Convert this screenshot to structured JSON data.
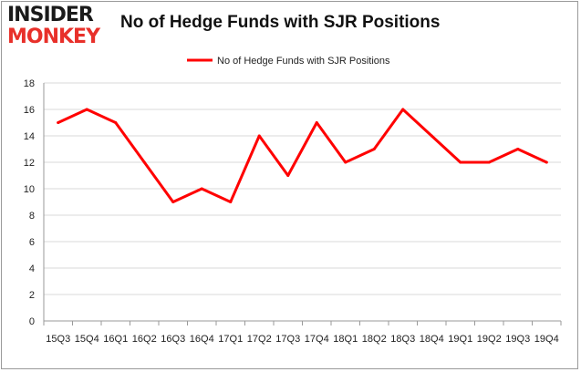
{
  "logo": {
    "line1": "INSIDER",
    "line2": "MONKEY"
  },
  "colors": {
    "series": "#ff0000",
    "grid": "#d8d8d8",
    "axis": "#9a9a9a",
    "brand": "#e8302a"
  },
  "chart_data": {
    "type": "line",
    "title": "No of Hedge Funds with SJR Positions",
    "legend_position": "top-center",
    "grid": true,
    "ylim": [
      0,
      18
    ],
    "yticks": [
      0,
      2,
      4,
      6,
      8,
      10,
      12,
      14,
      16,
      18
    ],
    "categories": [
      "15Q3",
      "15Q4",
      "16Q1",
      "16Q2",
      "16Q3",
      "16Q4",
      "17Q1",
      "17Q2",
      "17Q3",
      "17Q4",
      "18Q1",
      "18Q2",
      "18Q3",
      "18Q4",
      "19Q1",
      "19Q2",
      "19Q3",
      "19Q4"
    ],
    "series": [
      {
        "name": "No of Hedge Funds with SJR Positions",
        "values": [
          15,
          16,
          15,
          12,
          9,
          10,
          9,
          14,
          11,
          15,
          12,
          13,
          16,
          14,
          12,
          12,
          13,
          12
        ]
      }
    ]
  }
}
